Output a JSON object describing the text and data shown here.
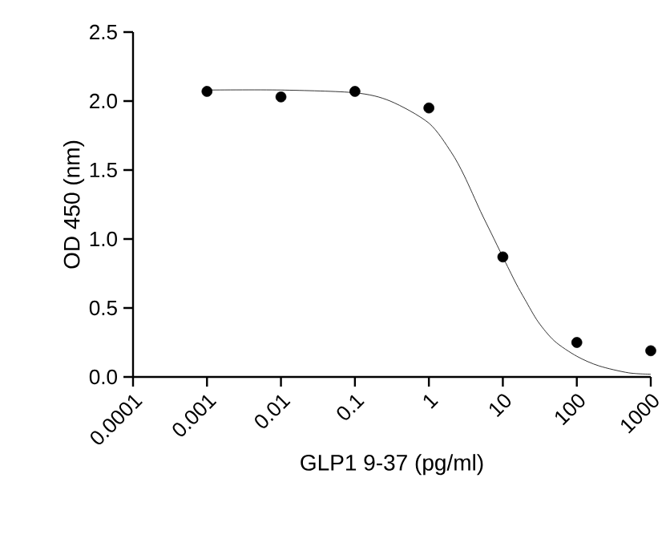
{
  "chart_data": {
    "type": "scatter",
    "xlabel": "GLP1 9-37 (pg/ml)",
    "ylabel": "OD 450 (nm)",
    "log": "x",
    "grid": false,
    "xlim": [
      0.0001,
      1000
    ],
    "xticks": [
      0.0001,
      0.001,
      0.01,
      0.1,
      1,
      10,
      100,
      1000
    ],
    "ylim": [
      0,
      2.5
    ],
    "yticks": [
      {
        "value": 0,
        "label": "0.0"
      },
      {
        "value": 0.5,
        "label": "0.5"
      },
      {
        "value": 1,
        "label": "1.0"
      },
      {
        "value": 1.5,
        "label": "1.5"
      },
      {
        "value": 2,
        "label": "2.0"
      },
      {
        "value": 2.5,
        "label": "2.5"
      }
    ],
    "series": [
      {
        "color": "#000000",
        "marker": "circle",
        "x": [
          0.001,
          0.01,
          0.1,
          1,
          10,
          100,
          1000
        ],
        "values": [
          2.07,
          2.03,
          2.07,
          1.95,
          0.87,
          0.25,
          0.19
        ]
      },
      {
        "type": "line",
        "color": "#000000",
        "marker": "none",
        "line_style": "solid",
        "x": [
          0.001,
          0.01,
          0.1,
          0.3,
          1,
          2,
          3,
          5,
          7,
          10,
          15,
          20,
          30,
          50,
          100,
          200,
          500,
          1000
        ],
        "values": [
          2.08,
          2.08,
          2.06,
          2.0,
          1.84,
          1.63,
          1.46,
          1.2,
          1.04,
          0.87,
          0.68,
          0.56,
          0.4,
          0.26,
          0.15,
          0.08,
          0.03,
          0.02
        ]
      }
    ]
  }
}
